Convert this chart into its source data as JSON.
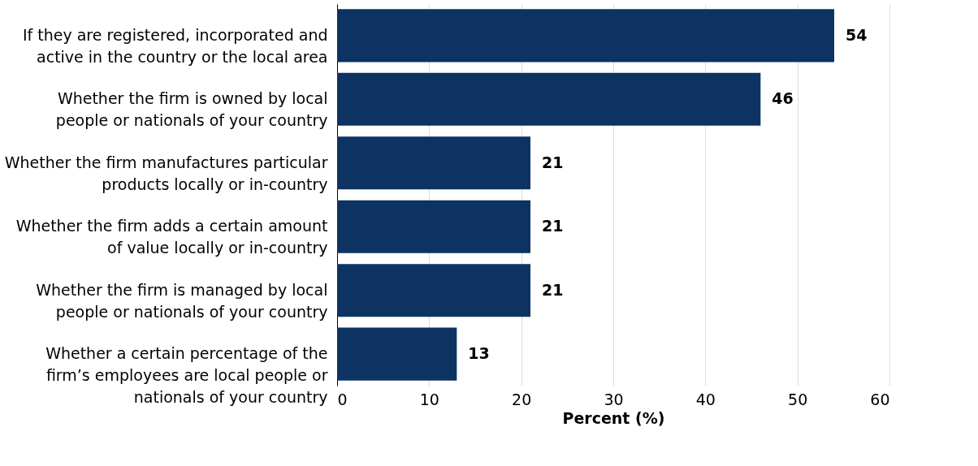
{
  "chart_data": {
    "type": "bar",
    "orientation": "horizontal",
    "xlabel": "Percent (%)",
    "categories": [
      "If they are registered, incorporated and active in the country or the local area",
      "Whether the firm is owned by local people or nationals of your country",
      "Whether the firm manufactures particular products locally or in-country",
      "Whether the firm adds a certain amount of value locally or in-country",
      "Whether the firm is managed by local people or nationals of your country",
      "Whether a certain percentage of the firm’s employees are local people or nationals of your country"
    ],
    "values": [
      54,
      46,
      21,
      21,
      21,
      13
    ],
    "color": "#0c3362",
    "xlim": [
      0,
      60
    ],
    "xticks": [
      0,
      10,
      20,
      30,
      40,
      50,
      60
    ],
    "grid": "x",
    "data_labels": true
  }
}
